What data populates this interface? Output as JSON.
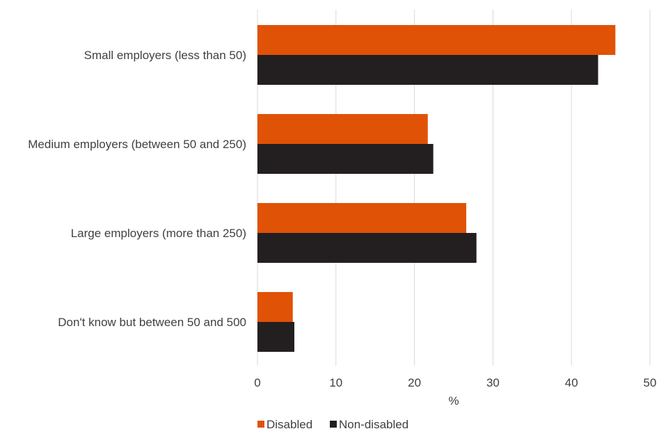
{
  "chart_data": {
    "type": "bar",
    "orientation": "horizontal",
    "title": "",
    "xlabel": "%",
    "ylabel": "",
    "categories": [
      "Small employers (less than 50)",
      "Medium employers (between 50 and 250)",
      "Large employers (more than 250)",
      "Don't know but between 50 and 500"
    ],
    "series": [
      {
        "name": "Disabled",
        "color": "#E05206",
        "values": [
          45.6,
          21.7,
          26.6,
          4.5
        ]
      },
      {
        "name": "Non-disabled",
        "color": "#231F20",
        "values": [
          43.4,
          22.4,
          27.9,
          4.7
        ]
      }
    ],
    "xlim": [
      0,
      50
    ],
    "xticks": [
      0,
      10,
      20,
      30,
      40,
      50
    ],
    "grid": "vertical",
    "legend": "bottom-center"
  }
}
